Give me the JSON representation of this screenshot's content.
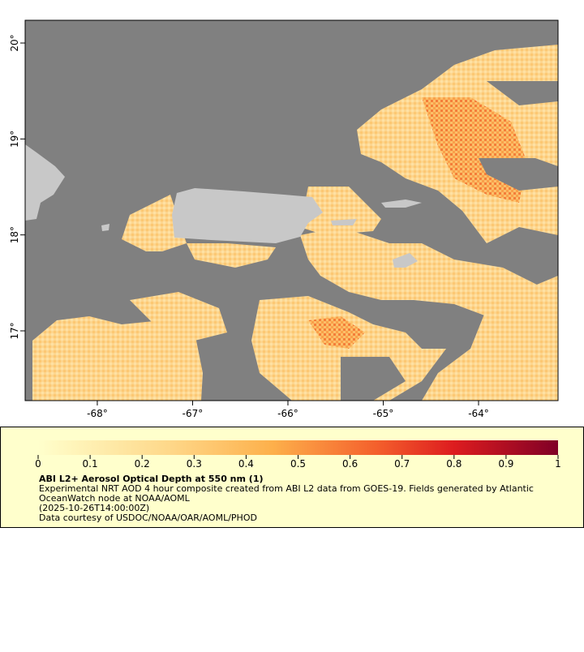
{
  "map": {
    "xlim": [
      -68.757,
      -63.166
    ],
    "ylim": [
      16.273,
      20.237
    ],
    "lon_ticks": [
      {
        "value": -68,
        "label": "-68°"
      },
      {
        "value": -67,
        "label": "-67°"
      },
      {
        "value": -66,
        "label": "-66°"
      },
      {
        "value": -65,
        "label": "-65°"
      },
      {
        "value": -64,
        "label": "-64°"
      }
    ],
    "lat_ticks": [
      {
        "value": 17,
        "label": "17°"
      },
      {
        "value": 18,
        "label": "18°"
      },
      {
        "value": 19,
        "label": "19°"
      },
      {
        "value": 20,
        "label": "20°"
      }
    ]
  },
  "colorbar": {
    "lim": [
      0,
      1
    ],
    "ticks": [
      0,
      0.1,
      0.2,
      0.3,
      0.4,
      0.5,
      0.6,
      0.7,
      0.8,
      0.9,
      1
    ]
  },
  "legend": {
    "title": "ABI L2+ Aerosol Optical Depth at 550 nm (1)",
    "lines": [
      "Experimental NRT AOD 4 hour composite created from ABI L2 data from GOES-19. Fields generated by Atlantic",
      "OceanWatch node at NOAA/AOML",
      "(2025-10-26T14:00:00Z)",
      "Data courtesy of USDOC/NOAA/OAR/AOML/PHOD"
    ]
  }
}
